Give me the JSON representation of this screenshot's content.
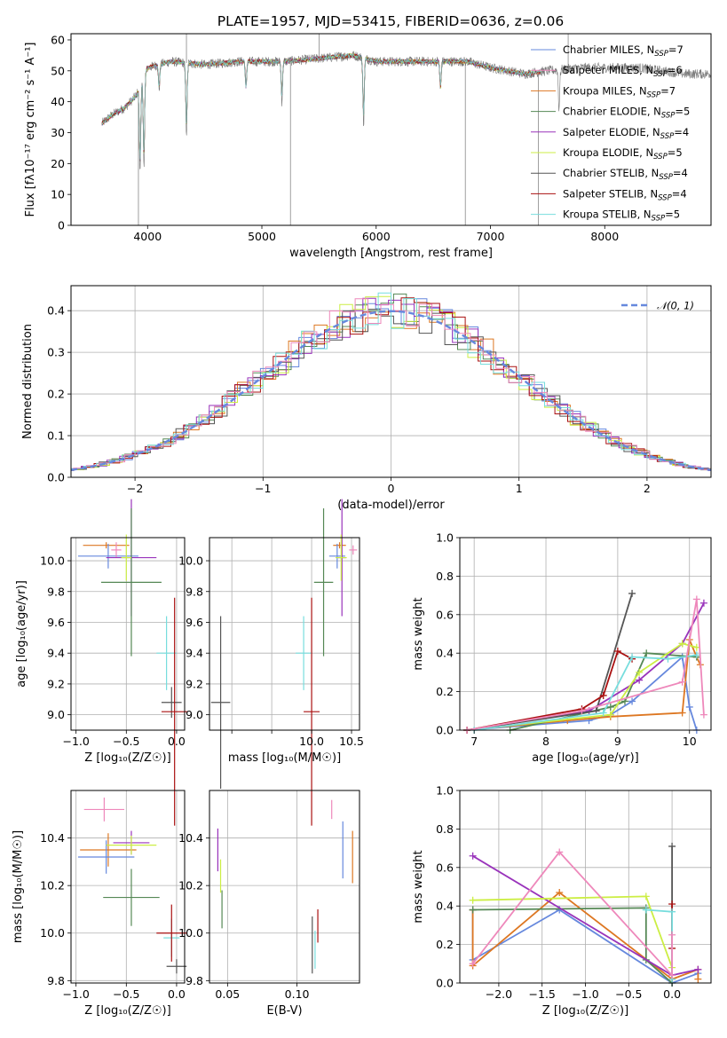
{
  "figure": {
    "title": "PLATE=1957, MJD=53415, FIBERID=0636, z=0.06"
  },
  "colors": {
    "blue": "#6688dd",
    "orange": "#dd7722",
    "green": "#558855",
    "purple": "#9933bb",
    "yellow": "#ccee44",
    "grey": "#555555",
    "red": "#aa1111",
    "cyan": "#77dddd",
    "pink": "#ee88bb",
    "spectrum": "#777777"
  },
  "chart_data": [
    {
      "id": "spectrum",
      "type": "line",
      "xlabel": "wavelength [Angstrom, rest frame]",
      "ylabel": "Flux [fλ10⁻¹⁷ erg cm⁻² s⁻¹ A⁻¹]",
      "xlim": [
        3330,
        8930
      ],
      "ylim": [
        0,
        62
      ],
      "xticks": [
        4000,
        5000,
        6000,
        7000,
        8000
      ],
      "yticks": [
        0,
        10,
        20,
        30,
        40,
        50,
        60
      ],
      "grid": false,
      "legend_position": "top-right",
      "legend": [
        {
          "label": "Chabrier MILES, N",
          "sub": "SSP",
          "suffix": "=7",
          "color": "blue"
        },
        {
          "label": "Salpeter MILES, N",
          "sub": "SSP",
          "suffix": "=6",
          "color": "pink"
        },
        {
          "label": "Kroupa MILES, N",
          "sub": "SSP",
          "suffix": "=7",
          "color": "orange"
        },
        {
          "label": "Chabrier ELODIE, N",
          "sub": "SSP",
          "suffix": "=5",
          "color": "green"
        },
        {
          "label": "Salpeter ELODIE, N",
          "sub": "SSP",
          "suffix": "=4",
          "color": "purple"
        },
        {
          "label": "Kroupa ELODIE, N",
          "sub": "SSP",
          "suffix": "=5",
          "color": "yellow"
        },
        {
          "label": "Chabrier STELIB, N",
          "sub": "SSP",
          "suffix": "=4",
          "color": "grey"
        },
        {
          "label": "Salpeter STELIB, N",
          "sub": "SSP",
          "suffix": "=4",
          "color": "red"
        },
        {
          "label": "Kroupa STELIB, N",
          "sub": "SSP",
          "suffix": "=5",
          "color": "cyan"
        }
      ],
      "continuum": [
        [
          3600,
          33
        ],
        [
          3700,
          36
        ],
        [
          3800,
          38
        ],
        [
          3900,
          42
        ],
        [
          3950,
          46
        ],
        [
          4000,
          51
        ],
        [
          4200,
          53
        ],
        [
          4500,
          52
        ],
        [
          4800,
          53
        ],
        [
          5000,
          53
        ],
        [
          5200,
          53
        ],
        [
          5500,
          54
        ],
        [
          5800,
          55
        ],
        [
          6000,
          53
        ],
        [
          6300,
          53
        ],
        [
          6500,
          53
        ],
        [
          6800,
          53
        ],
        [
          7000,
          51
        ],
        [
          7300,
          49
        ],
        [
          7500,
          50
        ],
        [
          7800,
          51
        ],
        [
          8000,
          51
        ],
        [
          8300,
          51
        ],
        [
          8500,
          50
        ],
        [
          8700,
          49
        ],
        [
          8930,
          49
        ]
      ],
      "absorption_lines": [
        [
          3934,
          17
        ],
        [
          3968,
          20
        ],
        [
          4101,
          44
        ],
        [
          4340,
          30
        ],
        [
          4861,
          44
        ],
        [
          5175,
          40
        ],
        [
          5890,
          33
        ],
        [
          6563,
          44
        ],
        [
          7600,
          38
        ]
      ],
      "spikes": [
        [
          3920,
          0
        ],
        [
          4340,
          62
        ],
        [
          5250,
          0
        ],
        [
          5500,
          62
        ],
        [
          6780,
          0
        ],
        [
          7420,
          0
        ],
        [
          7680,
          62
        ]
      ],
      "model_range": [
        3600,
        7450
      ]
    },
    {
      "id": "residual-histogram",
      "type": "bar",
      "xlabel": "(data-model)/error",
      "ylabel": "Normed distribution",
      "xlim": [
        -2.5,
        2.5
      ],
      "ylim": [
        0,
        0.46
      ],
      "xticks": [
        -2,
        -1,
        0,
        1,
        2
      ],
      "yticks": [
        0.0,
        0.1,
        0.2,
        0.3,
        0.4
      ],
      "grid": true,
      "legend_position": "top-right",
      "legend": [
        {
          "label": "𝒩(0, 1)",
          "color": "blue",
          "dashed": true
        }
      ],
      "bin_width": 0.1,
      "series_colors": [
        "blue",
        "orange",
        "green",
        "purple",
        "yellow",
        "grey",
        "red",
        "cyan",
        "pink"
      ]
    },
    {
      "id": "age-vs-Z",
      "type": "scatter",
      "xlabel": "Z [log₁₀(Z/Z☉)]",
      "ylabel": "age  [log₁₀(age/yr)]",
      "xlim": [
        -1.05,
        0.08
      ],
      "ylim": [
        8.9,
        10.15
      ],
      "xticks": [
        -1.0,
        -0.5,
        0.0
      ],
      "yticks": [
        9.0,
        9.2,
        9.4,
        9.6,
        9.8,
        10.0
      ],
      "grid": true,
      "points": [
        {
          "color": "orange",
          "x": -0.7,
          "y": 10.1,
          "xerr": 0.23,
          "yerr": 0.02
        },
        {
          "color": "blue",
          "x": -0.68,
          "y": 10.03,
          "xerr": 0.3,
          "yerr": 0.08
        },
        {
          "color": "pink",
          "x": -0.6,
          "y": 10.07,
          "xerr": 0.05,
          "yerr": 0.05
        },
        {
          "color": "purple",
          "x": -0.45,
          "y": 10.02,
          "xerr": 0.25,
          "yerr": 0.38
        },
        {
          "color": "green",
          "x": -0.45,
          "y": 9.86,
          "xerr": 0.3,
          "yerr": 0.48
        },
        {
          "color": "yellow",
          "x": -0.5,
          "y": 10.02,
          "xerr": 0.05,
          "yerr": 0.15
        },
        {
          "color": "cyan",
          "x": -0.1,
          "y": 9.4,
          "xerr": 0.1,
          "yerr": 0.24
        },
        {
          "color": "grey",
          "x": -0.05,
          "y": 9.08,
          "xerr": 0.1,
          "yerr": 0.1
        },
        {
          "color": "red",
          "x": -0.02,
          "y": 9.02,
          "xerr": 0.13,
          "yerr": 0.74
        }
      ]
    },
    {
      "id": "age-vs-mass",
      "type": "scatter",
      "xlabel": "mass [log₁₀(M/M☉)]",
      "ylabel": "",
      "xlim": [
        8.72,
        10.6
      ],
      "ylim": [
        8.9,
        10.15
      ],
      "xticks": [
        9.0,
        9.5,
        10.0,
        10.5
      ],
      "tick_labels_shown": [
        "10.0",
        "10.5"
      ],
      "yticks": [
        9.0,
        9.2,
        9.4,
        9.6,
        9.8,
        10.0
      ],
      "grid": true,
      "points": [
        {
          "color": "orange",
          "x": 10.35,
          "y": 10.1,
          "xerr": 0.08,
          "yerr": 0.02
        },
        {
          "color": "blue",
          "x": 10.32,
          "y": 10.03,
          "xerr": 0.1,
          "yerr": 0.08
        },
        {
          "color": "pink",
          "x": 10.52,
          "y": 10.07,
          "xerr": 0.05,
          "yerr": 0.03
        },
        {
          "color": "purple",
          "x": 10.38,
          "y": 10.02,
          "xerr": 0.05,
          "yerr": 0.38
        },
        {
          "color": "green",
          "x": 10.15,
          "y": 9.86,
          "xerr": 0.12,
          "yerr": 0.48
        },
        {
          "color": "yellow",
          "x": 10.37,
          "y": 10.02,
          "xerr": 0.07,
          "yerr": 0.15
        },
        {
          "color": "cyan",
          "x": 9.9,
          "y": 9.4,
          "xerr": 0.1,
          "yerr": 0.24
        },
        {
          "color": "grey",
          "x": 8.86,
          "y": 9.08,
          "xerr": 0.12,
          "yerr": 0.56
        },
        {
          "color": "red",
          "x": 10.0,
          "y": 9.02,
          "xerr": 0.1,
          "yerr": 0.74
        }
      ]
    },
    {
      "id": "mass-weight-vs-age",
      "type": "line",
      "xlabel": "age  [log₁₀(age/yr)]",
      "ylabel": "mass weight",
      "xlim": [
        6.8,
        10.3
      ],
      "ylim": [
        0,
        1.0
      ],
      "xticks": [
        7,
        8,
        9,
        10
      ],
      "yticks": [
        0.0,
        0.2,
        0.4,
        0.6,
        0.8,
        1.0
      ],
      "grid": true,
      "series": [
        {
          "color": "blue",
          "x": [
            6.9,
            8.6,
            8.9,
            9.2,
            9.9,
            10.0,
            10.1
          ],
          "y": [
            0.0,
            0.05,
            0.08,
            0.15,
            0.38,
            0.12,
            0.0
          ]
        },
        {
          "color": "orange",
          "x": [
            6.9,
            8.3,
            8.9,
            9.9,
            10.0,
            10.1,
            10.15
          ],
          "y": [
            0.0,
            0.05,
            0.07,
            0.09,
            0.47,
            0.38,
            0.34
          ]
        },
        {
          "color": "green",
          "x": [
            7.5,
            8.9,
            9.1,
            9.4,
            10.1
          ],
          "y": [
            0.0,
            0.12,
            0.15,
            0.4,
            0.38
          ]
        },
        {
          "color": "purple",
          "x": [
            6.9,
            8.6,
            9.3,
            9.9,
            10.2
          ],
          "y": [
            0.0,
            0.1,
            0.26,
            0.45,
            0.66
          ]
        },
        {
          "color": "yellow",
          "x": [
            6.9,
            8.9,
            9.3,
            9.9,
            10.1
          ],
          "y": [
            0.0,
            0.08,
            0.3,
            0.45,
            0.43
          ]
        },
        {
          "color": "grey",
          "x": [
            6.9,
            8.7,
            9.2
          ],
          "y": [
            0.0,
            0.1,
            0.71
          ]
        },
        {
          "color": "red",
          "x": [
            6.9,
            8.5,
            8.8,
            9.0,
            9.2
          ],
          "y": [
            0.0,
            0.11,
            0.18,
            0.41,
            0.37
          ]
        },
        {
          "color": "cyan",
          "x": [
            7.0,
            8.8,
            9.2,
            9.7,
            10.1
          ],
          "y": [
            0.0,
            0.09,
            0.38,
            0.37,
            0.39
          ]
        },
        {
          "color": "pink",
          "x": [
            6.9,
            8.5,
            9.9,
            10.1,
            10.2
          ],
          "y": [
            0.0,
            0.1,
            0.25,
            0.68,
            0.08
          ]
        }
      ]
    },
    {
      "id": "mass-vs-Z",
      "type": "scatter",
      "xlabel": "Z [log₁₀(Z/Z☉)]",
      "ylabel": "mass [log₁₀(M/M☉)]",
      "xlim": [
        -1.05,
        0.08
      ],
      "ylim": [
        9.79,
        10.6
      ],
      "xticks": [
        -1.0,
        -0.5,
        0.0
      ],
      "yticks": [
        9.8,
        10.0,
        10.2,
        10.4
      ],
      "grid": true,
      "points": [
        {
          "color": "pink",
          "x": -0.72,
          "y": 10.52,
          "xerr": 0.2,
          "yerr": 0.05
        },
        {
          "color": "orange",
          "x": -0.68,
          "y": 10.35,
          "xerr": 0.28,
          "yerr": 0.07
        },
        {
          "color": "blue",
          "x": -0.7,
          "y": 10.32,
          "xerr": 0.28,
          "yerr": 0.07
        },
        {
          "color": "purple",
          "x": -0.45,
          "y": 10.38,
          "xerr": 0.18,
          "yerr": 0.05
        },
        {
          "color": "yellow",
          "x": -0.45,
          "y": 10.37,
          "xerr": 0.25,
          "yerr": 0.04
        },
        {
          "color": "green",
          "x": -0.45,
          "y": 10.15,
          "xerr": 0.28,
          "yerr": 0.12
        },
        {
          "color": "cyan",
          "x": -0.05,
          "y": 9.98,
          "xerr": 0.08,
          "yerr": 0.08
        },
        {
          "color": "red",
          "x": -0.05,
          "y": 10.0,
          "xerr": 0.15,
          "yerr": 0.12
        },
        {
          "color": "grey",
          "x": 0.0,
          "y": 9.86,
          "xerr": 0.1,
          "yerr": 0.03
        }
      ]
    },
    {
      "id": "mass-vs-EBV",
      "type": "scatter",
      "xlabel": "E(B-V)",
      "ylabel": "",
      "xlim": [
        0.037,
        0.145
      ],
      "ylim": [
        9.79,
        10.6
      ],
      "xticks": [
        0.05,
        0.1
      ],
      "yticks": [
        9.8,
        10.0,
        10.2,
        10.4
      ],
      "grid": true,
      "points": [
        {
          "color": "purple",
          "x": 0.043,
          "y": 10.35,
          "xerr": 0.0,
          "yerr": 0.09
        },
        {
          "color": "yellow",
          "x": 0.045,
          "y": 10.24,
          "xerr": 0.0,
          "yerr": 0.07
        },
        {
          "color": "green",
          "x": 0.046,
          "y": 10.1,
          "xerr": 0.0,
          "yerr": 0.08
        },
        {
          "color": "grey",
          "x": 0.111,
          "y": 9.95,
          "xerr": 0.0,
          "yerr": 0.12
        },
        {
          "color": "cyan",
          "x": 0.113,
          "y": 9.93,
          "xerr": 0.0,
          "yerr": 0.08
        },
        {
          "color": "red",
          "x": 0.115,
          "y": 10.03,
          "xerr": 0.0,
          "yerr": 0.07
        },
        {
          "color": "pink",
          "x": 0.125,
          "y": 10.52,
          "xerr": 0.0,
          "yerr": 0.04
        },
        {
          "color": "blue",
          "x": 0.133,
          "y": 10.35,
          "xerr": 0.0,
          "yerr": 0.12
        },
        {
          "color": "orange",
          "x": 0.14,
          "y": 10.32,
          "xerr": 0.0,
          "yerr": 0.11
        }
      ]
    },
    {
      "id": "mass-weight-vs-Z",
      "type": "line",
      "xlabel": "Z [log₁₀(Z/Z☉)]",
      "ylabel": "mass weight",
      "xlim": [
        -2.45,
        0.45
      ],
      "ylim": [
        0,
        1.0
      ],
      "xticks": [
        -2.0,
        -1.5,
        -1.0,
        -0.5,
        0.0
      ],
      "yticks": [
        0.0,
        0.2,
        0.4,
        0.6,
        0.8,
        1.0
      ],
      "grid": true,
      "series": [
        {
          "color": "blue",
          "x": [
            -2.3,
            -2.3,
            -1.3,
            0.0,
            0.3
          ],
          "y": [
            0.38,
            0.12,
            0.38,
            0.0,
            0.05
          ]
        },
        {
          "color": "orange",
          "x": [
            -2.3,
            -2.3,
            -1.3,
            0.0,
            0.3,
            0.3
          ],
          "y": [
            0.38,
            0.09,
            0.47,
            0.02,
            0.07,
            0.02
          ]
        },
        {
          "color": "green",
          "x": [
            -2.3,
            -0.3,
            -0.3,
            0.0
          ],
          "y": [
            0.38,
            0.39,
            0.12,
            0.0
          ]
        },
        {
          "color": "purple",
          "x": [
            -2.3,
            0.0,
            0.3
          ],
          "y": [
            0.66,
            0.04,
            0.07
          ]
        },
        {
          "color": "yellow",
          "x": [
            -2.3,
            -0.3,
            0.0
          ],
          "y": [
            0.43,
            0.45,
            0.08
          ]
        },
        {
          "color": "grey",
          "x": [
            0.0,
            0.0
          ],
          "y": [
            0.71,
            0.02
          ]
        },
        {
          "color": "red",
          "x": [
            0.0,
            0.0
          ],
          "y": [
            0.41,
            0.18
          ]
        },
        {
          "color": "cyan",
          "x": [
            -0.3,
            0.0,
            0.0
          ],
          "y": [
            0.38,
            0.37,
            0.02
          ]
        },
        {
          "color": "pink",
          "x": [
            -2.3,
            -1.3,
            0.0,
            0.0
          ],
          "y": [
            0.1,
            0.68,
            0.04,
            0.25
          ]
        }
      ]
    }
  ]
}
